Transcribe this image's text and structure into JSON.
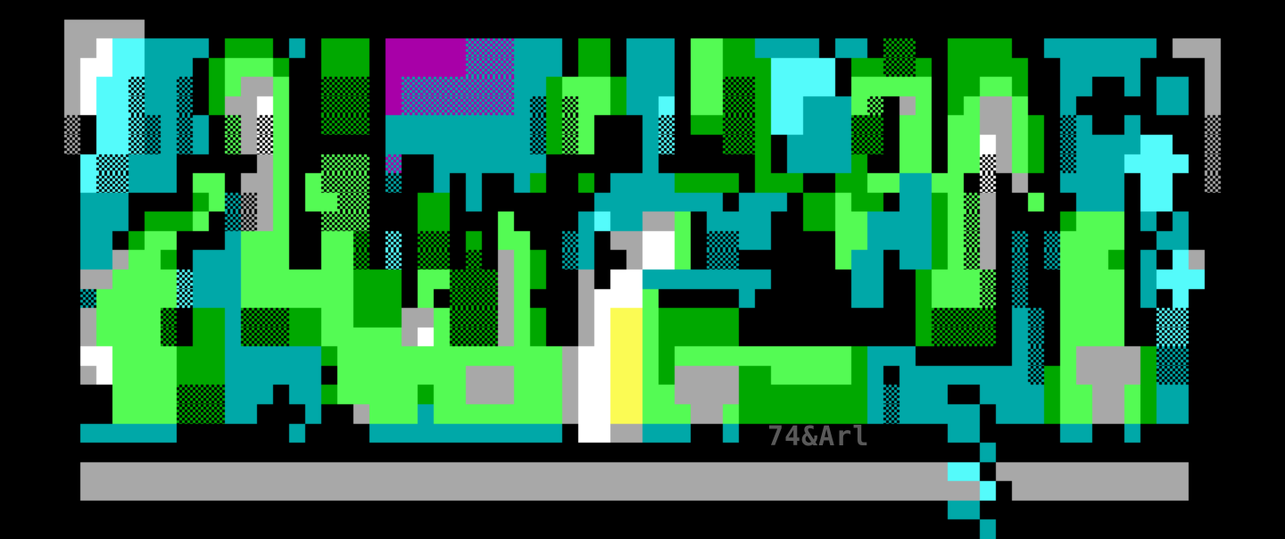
{
  "artwork": {
    "type": "ansi-block-graffiti",
    "signature": "74&Arl",
    "signature_color": "#595959",
    "background": "#000000",
    "grid": {
      "cols": 80,
      "rows": 28
    },
    "palette": {
      ".": {
        "name": "black",
        "base": "#000000"
      },
      "g": {
        "name": "bright-green",
        "base": "#54fb54"
      },
      "G": {
        "name": "green",
        "base": "#00a800"
      },
      "t": {
        "name": "teal",
        "base": "#00a8a8"
      },
      "C": {
        "name": "bright-cyan",
        "base": "#54fbfb"
      },
      "w": {
        "name": "white",
        "base": "#ffffff"
      },
      "s": {
        "name": "gray",
        "base": "#a8a8a8"
      },
      "y": {
        "name": "yellow",
        "base": "#fbfb54"
      },
      "m": {
        "name": "magenta",
        "base": "#a800a8"
      },
      "e": {
        "name": "green-dither",
        "base": "#000000",
        "dots": "#00a800"
      },
      "E": {
        "name": "bright-green-dither",
        "base": "#000000",
        "dots": "#54fb54"
      },
      "d": {
        "name": "teal-dither",
        "base": "#000000",
        "dots": "#00a8a8"
      },
      "D": {
        "name": "cyan-dither",
        "base": "#000000",
        "dots": "#54fbfb"
      },
      "M": {
        "name": "magenta-teal-dither",
        "base": "#a800a8",
        "dots": "#00a8a8"
      },
      "S": {
        "name": "gray-dither",
        "base": "#000000",
        "dots": "#a8a8a8"
      },
      "W": {
        "name": "white-dither",
        "base": "#000000",
        "dots": "#ffffff"
      }
    },
    "pixel_rows": [
      "................................................................................",
      "....sssss.......................................................................",
      "....sswCCtttt.GGG.t.GGG.mmmmmMMMttt.GG.ttt.ggGGtttt.tt.ee..GGGG..ttttttt.sss....",
      "....swwCCttt.GgggG..GGG.mmmmmMMMttt.GG.ttt.ggGGGCCCC.GGeeG.GGGGG..ttttt....s....",
      "....swCCDttd.Ggssg..eee.mMMMMMMMttGgggGttt.ggeeGCCCC.ggggg.GGggG..tt..t.tt.s....",
      "....swCCDttd.Gsswg..eee.mMMMMMMMtdGEggGttC.ggeeGCCtttgE.sg.Ggssg..t.....tt.s....",
      "....S.CCDdtdt.EsWg..eee.tttttttttdGEg...tD.GGeeGCCtttee.gg.ggssgG.dt..t....S....",
      "....S.CCDdtdt.EsWg......tttttttttdGEg...tD...eeG.ttttee.gg.ggwsgG.dttttCC..S....",
      ".....CDDttt.....sg..EEE.M..ttttttt......t......G.ttttG..gg.ggWsgG.dtttCCCC.S....",
      ".....CDDttt.gg.ssg.gEEE.d..t.t..tG..G.ttttGGGG.GGG..GGggttgg.W.s..tttt.CC..S....",
      ".....ttt....GgdSsg.ggEE...GG.t.......tttttttt.ttt.GGgGG.ttGgEs..g..ttt.CC.......",
      ".....ttt.GGGg.dSsg..EEE...GG...g....tCttssg.tttt..GGggttttGgEs....Gggg.t.t......",
      ".....tt.Ggg...tggg..gge.D.ee.G.gg..dt.sswwg.ddtt....ggttttGgEs.d.dgggg..tt......",
      ".....ttsggG.tttggg..gge.D.ee.e.sgG.dt..swwg.dd......gtt.ttGgEs.d.dgggG.t.Cs.....",
      ".....ssggggDtttgggggggGGG.ggeeesgG..s.wwtttttttt.....tt..GgggE.d..gggg.tCCC.....",
      ".....dgggggDtttgggggggGGG.g.eeesg...swwwg.....t......tt..GgggE.d..gggg.t.C......",
      ".....sgggge.GGteeeGGggGGGssgeeesgG..swyygGGGGG...........Geeee.td.gggg..DD......",
      ".....sgggge.GGteeeGGgggggswgeeesgG..swyygGGGGG...........Geeee.td.gggg..DD......",
      ".....wwggggGGGttttttGggggggggggggggswwyygGgggggggggggGttt......td.gssssGdd......",
      ".....swggggGGGtttttt.ggggggggsssgggswwyygGssssGGgggggGt.ttttttttdGgssssGdd......",
      ".......ggggeeettt.ttGgggggGggsssgggswwyyggssssGGGGGGGGtdttt..ttttGggssgGtt......",
      ".......ggggeeett...t..sgggtggggggggswwyygggssgGGGGGGGGtdttttt.tttGggssgGtt......",
      ".....tttttt.......t....tttttttttttt.wwssttt..t.............tt.....tt..t.........",
      ".............................................................t..................",
      ".....ssssssssssssssssssssssssssssssssssssssssssssssssssssssCC.ssssssssssss......",
      ".....ssssssssssssssssssssssssssssssssssssssssssssssssssssssssC.sssssssssss......",
      "...........................................................tt...................",
      ".............................................................t.................."
    ]
  }
}
